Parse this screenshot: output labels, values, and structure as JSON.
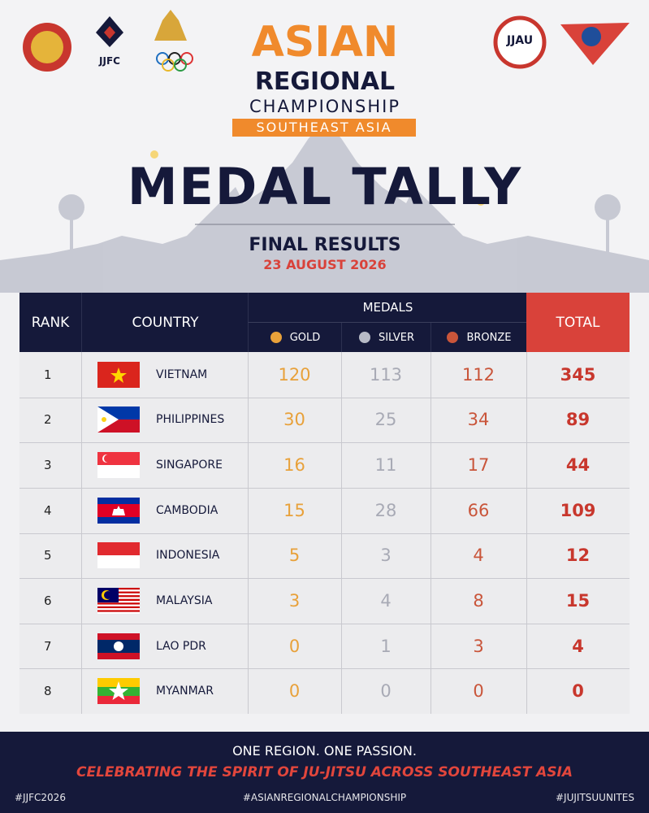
{
  "logos": {
    "left": "JJFC",
    "right": "JJAU"
  },
  "header": {
    "title_line1": "ASIAN",
    "title_line2": "REGIONAL",
    "title_line3": "CHAMPIONSHIP",
    "subtitle": "SOUTHEAST ASIA",
    "heading": "MEDAL TALLY",
    "subheading": "FINAL RESULTS",
    "date": "23 AUGUST 2026"
  },
  "table": {
    "columns": {
      "rank": "RANK",
      "country": "COUNTRY",
      "medals": "MEDALS",
      "gold": "GOLD",
      "silver": "SILVER",
      "bronze": "BRONZE",
      "total": "TOTAL"
    },
    "rows": [
      [
        1,
        "VIETNAM",
        120,
        113,
        112,
        345
      ],
      [
        2,
        "PHILIPPINES",
        30,
        25,
        34,
        89
      ],
      [
        3,
        "SINGAPORE",
        16,
        11,
        17,
        44
      ],
      [
        4,
        "CAMBODIA",
        15,
        28,
        66,
        109
      ],
      [
        5,
        "INDONESIA",
        5,
        3,
        4,
        12
      ],
      [
        6,
        "MALAYSIA",
        3,
        4,
        8,
        15
      ],
      [
        7,
        "LAO PDR",
        0,
        1,
        3,
        4
      ],
      [
        8,
        "MYANMAR",
        0,
        0,
        0,
        0
      ]
    ]
  },
  "footer": {
    "tagline": "ONE REGION. ONE PASSION.",
    "slogan": "CELEBRATING THE SPIRIT OF JU-JITSU ACROSS SOUTHEAST ASIA",
    "hashtags": [
      "#JJFC2026",
      "#ASIANREGIONALCHAMPIONSHIP",
      "#JUJITSUUNITES"
    ]
  }
}
